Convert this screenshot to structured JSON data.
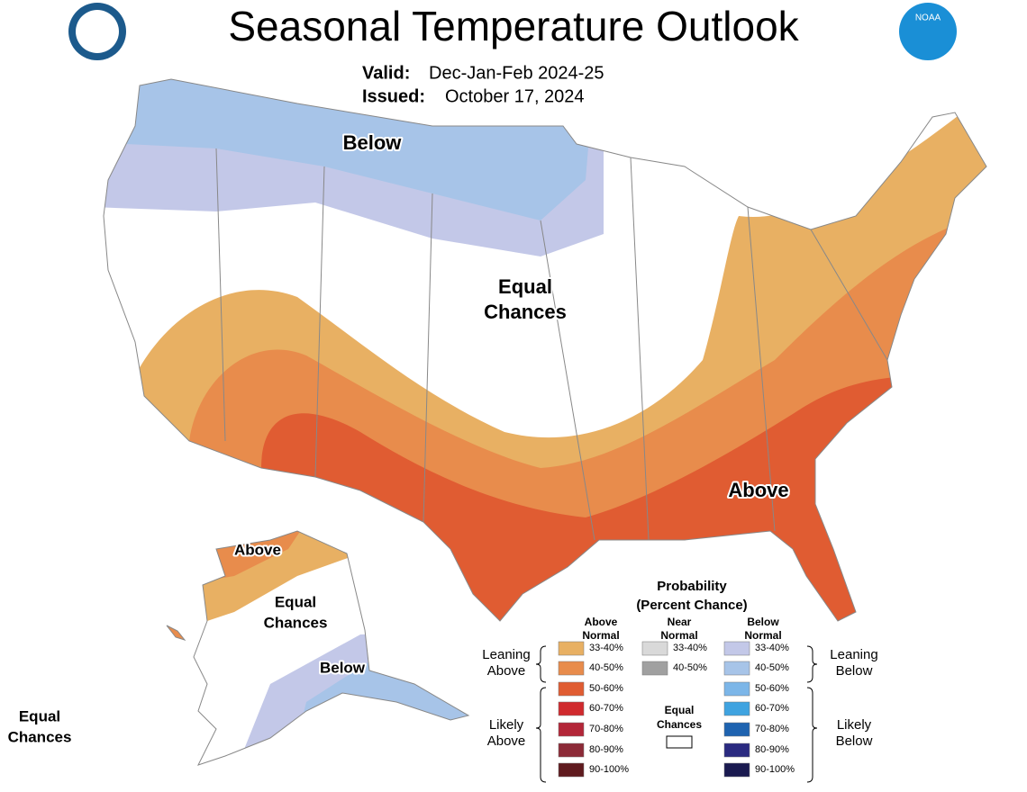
{
  "header": {
    "title": "Seasonal Temperature Outlook",
    "valid_label": "Valid:",
    "valid": "Dec-Jan-Feb 2024-25",
    "issued_label": "Issued:",
    "issued": "October 17, 2024",
    "logo": "NOAA"
  },
  "map_labels": {
    "conus": [
      {
        "lines": [
          "Below"
        ]
      },
      {
        "lines": [
          "Equal",
          "Chances"
        ]
      },
      {
        "lines": [
          "Above"
        ]
      }
    ],
    "alaska": [
      {
        "lines": [
          "Above"
        ]
      },
      {
        "lines": [
          "Equal",
          "Chances"
        ]
      },
      {
        "lines": [
          "Below"
        ]
      }
    ],
    "hawaii": [
      {
        "lines": [
          "Equal",
          "Chances"
        ]
      }
    ]
  },
  "legend": {
    "title": [
      "Probability",
      "(Percent Chance)"
    ],
    "columns": [
      {
        "header": [
          "Above",
          "Normal"
        ],
        "items": [
          {
            "label": "33-40%",
            "color": "#e8b063"
          },
          {
            "label": "40-50%",
            "color": "#e88c4c"
          },
          {
            "label": "50-60%",
            "color": "#e05c32"
          },
          {
            "label": "60-70%",
            "color": "#d02a2e"
          },
          {
            "label": "70-80%",
            "color": "#b32638"
          },
          {
            "label": "80-90%",
            "color": "#8c2a37"
          },
          {
            "label": "90-100%",
            "color": "#5f1a1e"
          }
        ]
      },
      {
        "header": [
          "Near",
          "Normal"
        ],
        "items": [
          {
            "label": "33-40%",
            "color": "#d9d9d9"
          },
          {
            "label": "40-50%",
            "color": "#a0a0a0"
          }
        ]
      },
      {
        "header": [
          "Below",
          "Normal"
        ],
        "items": [
          {
            "label": "33-40%",
            "color": "#c3c8e8"
          },
          {
            "label": "40-50%",
            "color": "#a7c4e8"
          },
          {
            "label": "50-60%",
            "color": "#7cb6e8"
          },
          {
            "label": "60-70%",
            "color": "#3fa3e0"
          },
          {
            "label": "70-80%",
            "color": "#1e63b0"
          },
          {
            "label": "80-90%",
            "color": "#2a2a80"
          },
          {
            "label": "90-100%",
            "color": "#1a1a50"
          }
        ]
      }
    ],
    "equal": [
      "Equal",
      "Chances"
    ],
    "groups": {
      "leaning_above": [
        "Leaning",
        "Above"
      ],
      "likely_above": [
        "Likely",
        "Above"
      ],
      "leaning_below": [
        "Leaning",
        "Below"
      ],
      "likely_below": [
        "Likely",
        "Below"
      ]
    }
  }
}
